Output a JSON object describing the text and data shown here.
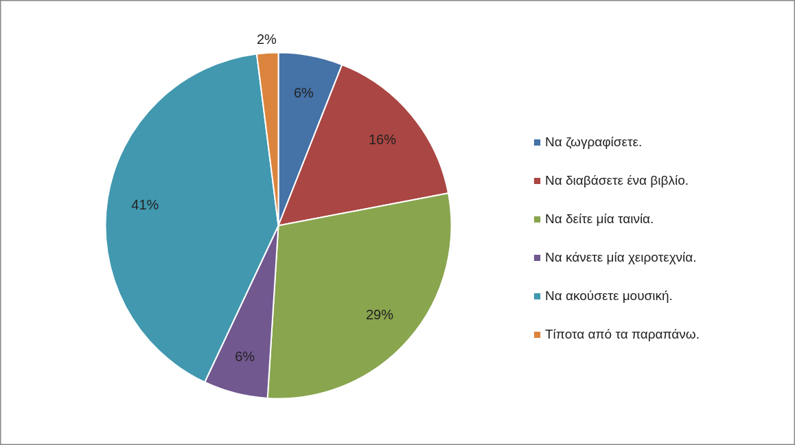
{
  "chart_data": {
    "type": "pie",
    "categories": [
      "Να ζωγραφίσετε.",
      "Να διαβάσετε ένα βιβλίο.",
      "Να δείτε μία ταινία.",
      "Να κάνετε μία χειροτεχνία.",
      "Να ακούσετε μουσική.",
      "Τίποτα από τα παραπάνω."
    ],
    "values": [
      6,
      16,
      29,
      6,
      41,
      2
    ],
    "colors": [
      "#4572a7",
      "#aa4643",
      "#89a54e",
      "#71588f",
      "#4198af",
      "#db843d"
    ],
    "value_labels": [
      "6%",
      "16%",
      "29%",
      "6%",
      "41%",
      "2%"
    ],
    "legend": "right"
  }
}
